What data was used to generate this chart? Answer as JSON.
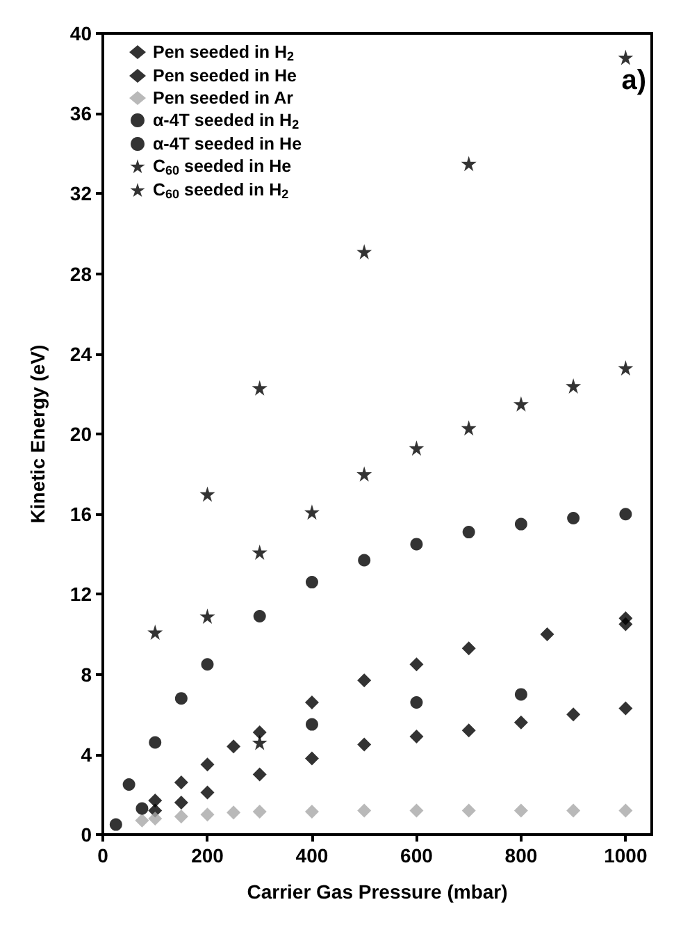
{
  "chart_data": {
    "type": "scatter",
    "xlabel": "Carrier Gas Pressure (mbar)",
    "ylabel": "Kinetic Energy (eV)",
    "annotations": [
      "a)"
    ],
    "xlim": [
      0,
      1050
    ],
    "xticks": [
      0,
      200,
      400,
      600,
      800,
      1000
    ],
    "ylim": [
      0,
      40
    ],
    "yticks": [
      0,
      4,
      8,
      12,
      16,
      20,
      24,
      28,
      32,
      36,
      40
    ],
    "grid": false,
    "legend": "top left",
    "series": [
      {
        "name": "Pen seeded in H$_{2}$",
        "color": "#000000",
        "marker": "diamond",
        "x": [
          100,
          150,
          200,
          250,
          300,
          400,
          500,
          600,
          700,
          850,
          1000
        ],
        "values": [
          1.7,
          2.6,
          3.5,
          4.4,
          5.1,
          6.6,
          7.7,
          8.5,
          9.3,
          10.0,
          10.8
        ]
      },
      {
        "name": "Pen seeded in He",
        "color": "#000000",
        "marker": "diamond",
        "x": [
          100,
          150,
          200,
          300,
          400,
          500,
          600,
          700,
          800,
          900,
          1000,
          1000
        ],
        "values": [
          1.2,
          1.6,
          2.1,
          3.0,
          3.8,
          4.5,
          4.9,
          5.2,
          5.6,
          6.0,
          6.3,
          10.5
        ]
      },
      {
        "name": "Pen seeded in Ar",
        "color": "#a8a8a8",
        "marker": "diamond",
        "x": [
          75,
          100,
          150,
          200,
          250,
          300,
          400,
          500,
          600,
          700,
          800,
          900,
          1000
        ],
        "values": [
          0.7,
          0.8,
          0.9,
          1.0,
          1.1,
          1.15,
          1.15,
          1.2,
          1.2,
          1.2,
          1.2,
          1.2,
          1.2
        ]
      },
      {
        "name": "α-4T seeded in H$_{2}$",
        "color": "#000000",
        "marker": "circle",
        "x": [
          50,
          100,
          150,
          200,
          300,
          400,
          500,
          600,
          700,
          800,
          900,
          1000
        ],
        "values": [
          2.5,
          4.6,
          6.8,
          8.5,
          10.9,
          12.6,
          13.7,
          14.5,
          15.1,
          15.5,
          15.8,
          16.0
        ]
      },
      {
        "name": "α-4T seeded in He",
        "color": "#000000",
        "marker": "circle",
        "x": [
          25,
          75,
          400,
          600,
          800
        ],
        "values": [
          0.5,
          1.3,
          5.5,
          6.6,
          7.0
        ]
      },
      {
        "name": "C$_{60}$ seeded in He",
        "color": "#000000",
        "marker": "star",
        "x": [
          200,
          300,
          300,
          400,
          500,
          600,
          700,
          800,
          900,
          1000
        ],
        "values": [
          10.9,
          4.6,
          14.1,
          16.1,
          18.0,
          19.3,
          20.3,
          21.5,
          22.4,
          23.3
        ]
      },
      {
        "name": "C$_{60}$ seeded in H$_{2}$",
        "color": "#000000",
        "marker": "star",
        "x": [
          100,
          200,
          300,
          500,
          700,
          1000
        ],
        "values": [
          10.1,
          17.0,
          22.3,
          29.1,
          33.5,
          38.8
        ]
      }
    ]
  }
}
